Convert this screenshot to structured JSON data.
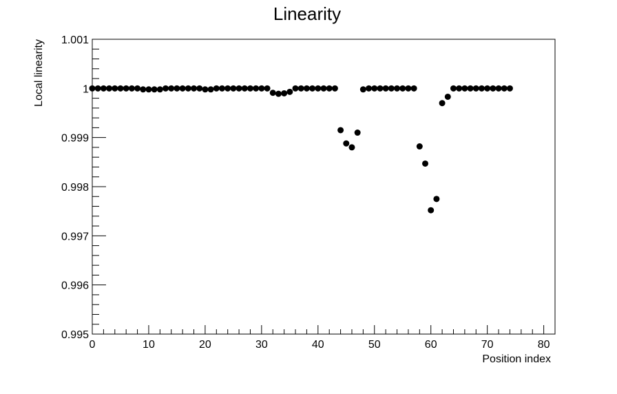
{
  "chart_data": {
    "type": "scatter",
    "title": "Linearity",
    "xlabel": "Position index",
    "ylabel": "Local linearity",
    "xlim": [
      0,
      82
    ],
    "ylim": [
      0.995,
      1.001
    ],
    "x_ticks": [
      0,
      10,
      20,
      30,
      40,
      50,
      60,
      70,
      80
    ],
    "y_ticks": [
      0.995,
      0.996,
      0.997,
      0.998,
      0.999,
      1,
      1.001
    ],
    "y_tick_labels": [
      "0.995",
      "0.996",
      "0.997",
      "0.998",
      "0.999",
      "1",
      "1.001"
    ],
    "grid": false,
    "marker_color": "#000000",
    "series": [
      {
        "x": [
          0,
          1,
          2,
          3,
          4,
          5,
          6,
          7,
          8,
          9,
          10,
          11,
          12,
          13,
          14,
          15,
          16,
          17,
          18,
          19,
          20,
          21,
          22,
          23,
          24,
          25,
          26,
          27,
          28,
          29,
          30,
          31,
          32,
          33,
          34,
          35,
          36,
          37,
          38,
          39,
          40,
          41,
          42,
          43,
          44,
          45,
          46,
          47,
          48,
          49,
          50,
          51,
          52,
          53,
          54,
          55,
          56,
          57,
          58,
          59,
          60,
          61,
          62,
          63,
          64,
          65,
          66,
          67,
          68,
          69,
          70,
          71,
          72,
          73,
          74
        ],
        "y": [
          1.0,
          1.0,
          1.0,
          1.0,
          1.0,
          1.0,
          1.0,
          1.0,
          1.0,
          0.99998,
          0.99998,
          0.99998,
          0.99998,
          1.0,
          1.0,
          1.0,
          1.0,
          1.0,
          1.0,
          1.0,
          0.99998,
          0.99998,
          1.0,
          1.0,
          1.0,
          1.0,
          1.0,
          1.0,
          1.0,
          1.0,
          1.0,
          1.0,
          0.99991,
          0.99989,
          0.9999,
          0.99993,
          1.0,
          1.0,
          1.0,
          1.0,
          1.0,
          1.0,
          1.0,
          1.0,
          0.99915,
          0.99888,
          0.9988,
          0.9991,
          0.99998,
          1.0,
          1.0,
          1.0,
          1.0,
          1.0,
          1.0,
          1.0,
          1.0,
          1.0,
          0.99882,
          0.99847,
          0.99752,
          0.99775,
          0.9997,
          0.99983,
          1.0,
          1.0,
          1.0,
          1.0,
          1.0,
          1.0,
          1.0,
          1.0,
          1.0,
          1.0,
          1.0
        ]
      }
    ]
  }
}
